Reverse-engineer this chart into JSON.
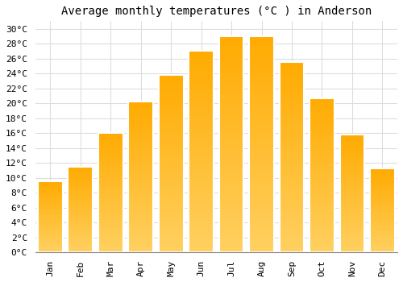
{
  "title": "Average monthly temperatures (°C ) in Anderson",
  "months": [
    "Jan",
    "Feb",
    "Mar",
    "Apr",
    "May",
    "Jun",
    "Jul",
    "Aug",
    "Sep",
    "Oct",
    "Nov",
    "Dec"
  ],
  "values": [
    9.5,
    11.5,
    16.0,
    20.2,
    23.8,
    27.0,
    29.0,
    29.0,
    25.5,
    20.7,
    15.8,
    11.2
  ],
  "bar_color_top": "#FFAA00",
  "bar_color_bottom": "#FFD060",
  "bar_edge_color": "#FFFFFF",
  "background_color": "#FFFFFF",
  "grid_color": "#DDDDDD",
  "ylim": [
    0,
    31
  ],
  "yticks": [
    0,
    2,
    4,
    6,
    8,
    10,
    12,
    14,
    16,
    18,
    20,
    22,
    24,
    26,
    28,
    30
  ],
  "title_fontsize": 10,
  "tick_fontsize": 8
}
